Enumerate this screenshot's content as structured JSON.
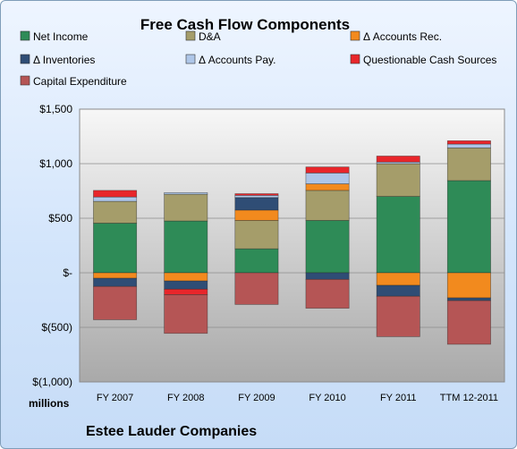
{
  "chart_data": {
    "type": "bar",
    "stacked": true,
    "title": "Free Cash Flow Components",
    "subtitle": "Estee Lauder Companies",
    "units_label": "millions",
    "categories": [
      "FY 2007",
      "FY 2008",
      "FY 2009",
      "FY 2010",
      "FY 2011",
      "TTM 12-2011"
    ],
    "ylim": [
      -1000,
      1500
    ],
    "yticks": [
      {
        "value": 1500,
        "label": "$1,500"
      },
      {
        "value": 1000,
        "label": "$1,000"
      },
      {
        "value": 500,
        "label": "$500"
      },
      {
        "value": 0,
        "label": "$-"
      },
      {
        "value": -500,
        "label": "$(500)"
      },
      {
        "value": -1000,
        "label": "$(1,000)"
      }
    ],
    "legend_placement": "top",
    "grid": true,
    "series": [
      {
        "name": "Net Income",
        "color": "#2e8b57",
        "values": [
          455,
          475,
          220,
          480,
          700,
          845
        ]
      },
      {
        "name": "D&A",
        "color": "#a59d6a",
        "values": [
          200,
          245,
          260,
          275,
          300,
          300
        ]
      },
      {
        "name": "Δ Accounts Rec.",
        "color": "#f28a1e",
        "values": [
          -50,
          -75,
          95,
          60,
          -115,
          -230
        ]
      },
      {
        "name": "Δ Inventories",
        "color": "#2f4d75",
        "values": [
          -75,
          -75,
          115,
          -60,
          -100,
          -25
        ]
      },
      {
        "name": "Δ Accounts Pay.",
        "color": "#aec6e8",
        "values": [
          40,
          15,
          20,
          100,
          15,
          35
        ]
      },
      {
        "name": "Questionable Cash Sources",
        "color": "#e8262b",
        "values": [
          60,
          -50,
          15,
          55,
          55,
          30
        ]
      },
      {
        "name": "Capital Expenditure",
        "color": "#b55555",
        "values": [
          -305,
          -355,
          -290,
          -265,
          -370,
          -400
        ]
      }
    ]
  }
}
